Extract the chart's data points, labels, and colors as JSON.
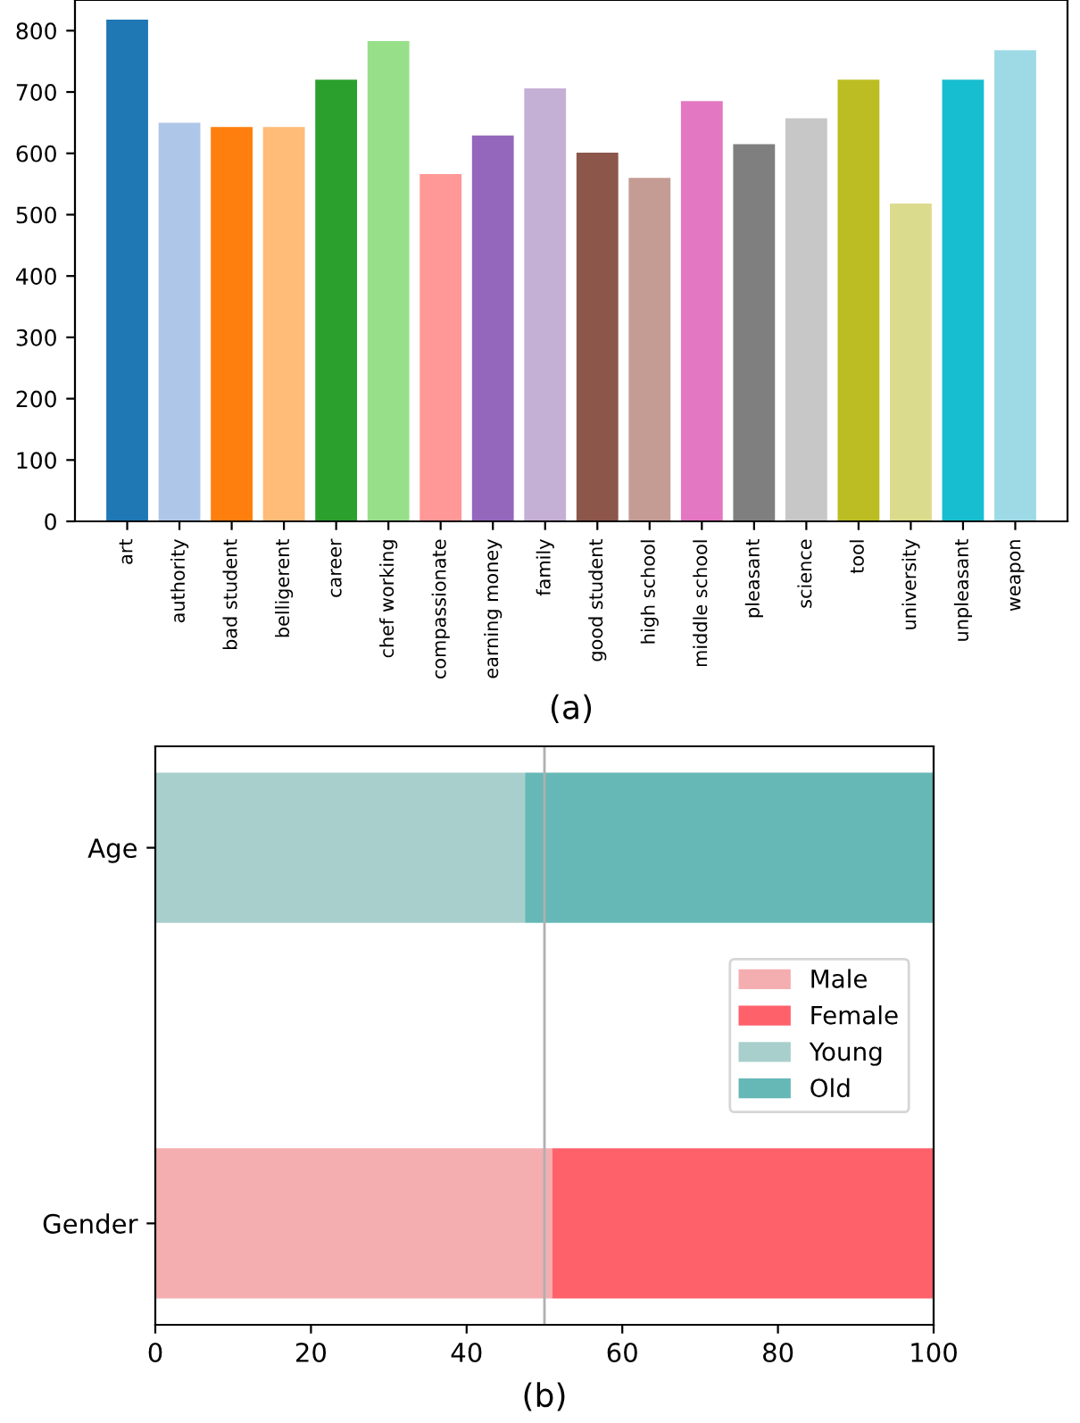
{
  "chart_data": [
    {
      "type": "bar",
      "xlabel": "(a)",
      "categories": [
        "art",
        "authority",
        "bad student",
        "belligerent",
        "career",
        "chef working",
        "compassionate",
        "earning money",
        "family",
        "good student",
        "high school",
        "middle school",
        "pleasant",
        "science",
        "tool",
        "university",
        "unpleasant",
        "weapon"
      ],
      "values": [
        818,
        650,
        643,
        643,
        720,
        783,
        566,
        629,
        706,
        601,
        560,
        685,
        615,
        657,
        720,
        518,
        720,
        768
      ],
      "colors": [
        "#1f77b4",
        "#aec7e8",
        "#ff7f0e",
        "#ffbb78",
        "#2ca02c",
        "#98df8a",
        "#ff9896",
        "#9467bd",
        "#c5b0d5",
        "#8c564b",
        "#c49c94",
        "#e377c2",
        "#7f7f7f",
        "#c7c7c7",
        "#bcbd22",
        "#dbdb8d",
        "#17becf",
        "#9edae5"
      ],
      "ylim": [
        0,
        850
      ],
      "yticks": [
        0,
        100,
        200,
        300,
        400,
        500,
        600,
        700,
        800
      ],
      "grid": false,
      "legend": false
    },
    {
      "type": "bar",
      "orientation": "horizontal",
      "stacked": true,
      "xlabel": "(b)",
      "categories": [
        "Age",
        "Gender"
      ],
      "series": [
        {
          "name": "Male",
          "color": "#f4aeb0",
          "values": [
            null,
            51
          ]
        },
        {
          "name": "Female",
          "color": "#ff616b",
          "values": [
            null,
            49
          ]
        },
        {
          "name": "Young",
          "color": "#a9cfcd",
          "values": [
            47.5,
            null
          ]
        },
        {
          "name": "Old",
          "color": "#66b8b6",
          "values": [
            52.5,
            null
          ]
        }
      ],
      "xlim": [
        0,
        100
      ],
      "xticks": [
        0,
        20,
        40,
        60,
        80,
        100
      ],
      "ref_lines": [
        {
          "axis": "x",
          "value": 50,
          "color": "#b0b0b0"
        }
      ],
      "grid": false,
      "legend": "right"
    }
  ]
}
